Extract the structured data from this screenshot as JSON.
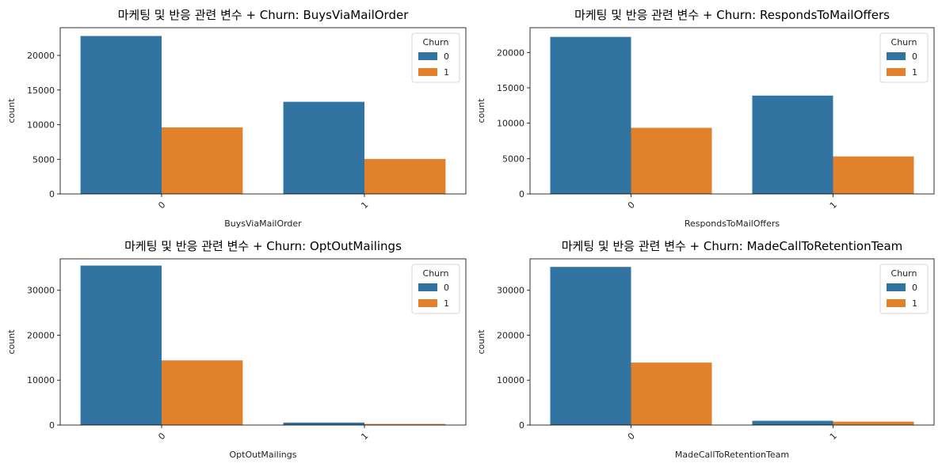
{
  "colors": {
    "series_0": "#3274a1",
    "series_1": "#e1812c"
  },
  "chart_data": [
    {
      "type": "bar",
      "title": "마케팅 및 반응 관련 변수 + Churn: BuysViaMailOrder",
      "xlabel": "BuysViaMailOrder",
      "ylabel": "count",
      "categories": [
        "0",
        "1"
      ],
      "ylim": [
        0,
        24000
      ],
      "yticks": [
        0,
        5000,
        10000,
        15000,
        20000
      ],
      "ytick_labels": [
        "0",
        "5000",
        "10000",
        "15000",
        "20000"
      ],
      "legend": {
        "title": "Churn",
        "position": "top-right"
      },
      "series": [
        {
          "name": "0",
          "values": [
            22800,
            13300
          ]
        },
        {
          "name": "1",
          "values": [
            9600,
            5050
          ]
        }
      ]
    },
    {
      "type": "bar",
      "title": "마케팅 및 반응 관련 변수 + Churn: RespondsToMailOffers",
      "xlabel": "RespondsToMailOffers",
      "ylabel": "count",
      "categories": [
        "0",
        "1"
      ],
      "ylim": [
        0,
        23500
      ],
      "yticks": [
        0,
        5000,
        10000,
        15000,
        20000
      ],
      "ytick_labels": [
        "0",
        "5000",
        "10000",
        "15000",
        "20000"
      ],
      "legend": {
        "title": "Churn",
        "position": "top-right"
      },
      "series": [
        {
          "name": "0",
          "values": [
            22200,
            13900
          ]
        },
        {
          "name": "1",
          "values": [
            9350,
            5300
          ]
        }
      ]
    },
    {
      "type": "bar",
      "title": "마케팅 및 반응 관련 변수 + Churn: OptOutMailings",
      "xlabel": "OptOutMailings",
      "ylabel": "count",
      "categories": [
        "0",
        "1"
      ],
      "ylim": [
        0,
        37000
      ],
      "yticks": [
        0,
        10000,
        20000,
        30000
      ],
      "ytick_labels": [
        "0",
        "10000",
        "20000",
        "30000"
      ],
      "legend": {
        "title": "Churn",
        "position": "top-right"
      },
      "series": [
        {
          "name": "0",
          "values": [
            35500,
            550
          ]
        },
        {
          "name": "1",
          "values": [
            14400,
            250
          ]
        }
      ]
    },
    {
      "type": "bar",
      "title": "마케팅 및 반응 관련 변수 + Churn: MadeCallToRetentionTeam",
      "xlabel": "MadeCallToRetentionTeam",
      "ylabel": "count",
      "categories": [
        "0",
        "1"
      ],
      "ylim": [
        0,
        37000
      ],
      "yticks": [
        0,
        10000,
        20000,
        30000
      ],
      "ytick_labels": [
        "0",
        "10000",
        "20000",
        "30000"
      ],
      "legend": {
        "title": "Churn",
        "position": "top-right"
      },
      "series": [
        {
          "name": "0",
          "values": [
            35200,
            950
          ]
        },
        {
          "name": "1",
          "values": [
            13900,
            750
          ]
        }
      ]
    }
  ]
}
